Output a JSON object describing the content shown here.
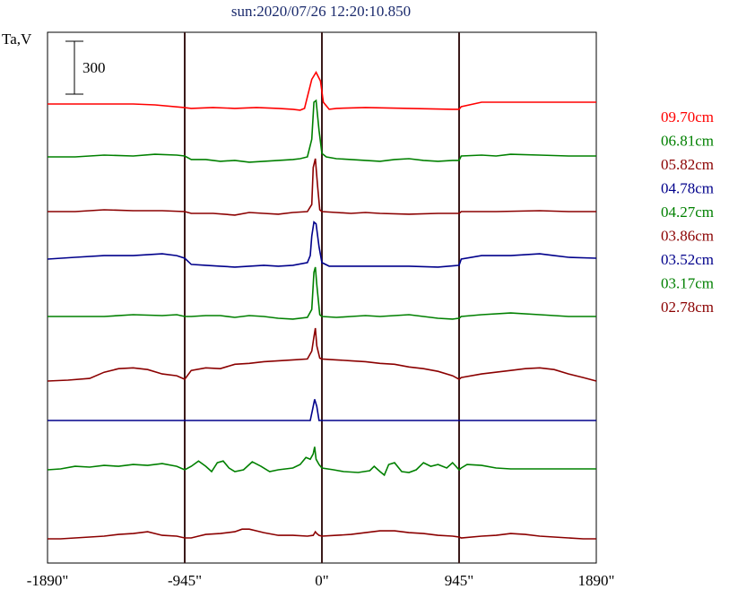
{
  "chart_data": {
    "type": "line",
    "title": "sun:2020/07/26 12:20:10.850",
    "ylabel": "Ta,V",
    "scale_bar_label": "300",
    "scale_bar_value": 300,
    "xlim": [
      -1890,
      1890
    ],
    "x_ticks": [
      -1890,
      -945,
      0,
      945,
      1890
    ],
    "x_tick_labels": [
      "-1890\"",
      "-945\"",
      "0\"",
      "945\"",
      "1890\""
    ],
    "vertical_lines": [
      -945,
      0,
      945
    ],
    "grid": false,
    "legend_position": "right",
    "series": [
      {
        "name": "09.70cm",
        "color": "#ff0000",
        "x": [
          -1890,
          -1600,
          -1300,
          -1150,
          -950,
          -900,
          -750,
          -600,
          -450,
          -300,
          -200,
          -150,
          -120,
          -100,
          -70,
          -40,
          -10,
          10,
          50,
          100,
          300,
          600,
          900,
          945,
          960,
          1100,
          1300,
          1600,
          1890
        ],
        "y": [
          0,
          0,
          0,
          -5,
          -20,
          -25,
          -20,
          -25,
          -20,
          -25,
          -30,
          -35,
          -25,
          40,
          140,
          180,
          130,
          10,
          -30,
          -25,
          -20,
          -25,
          -30,
          -30,
          -15,
          10,
          10,
          10,
          10
        ]
      },
      {
        "name": "06.81cm",
        "color": "#008000",
        "x": [
          -1890,
          -1700,
          -1500,
          -1300,
          -1150,
          -1000,
          -945,
          -900,
          -800,
          -700,
          -600,
          -500,
          -400,
          -300,
          -200,
          -150,
          -100,
          -70,
          -55,
          -40,
          -20,
          0,
          30,
          100,
          200,
          300,
          400,
          500,
          600,
          700,
          800,
          900,
          945,
          960,
          1100,
          1200,
          1300,
          1500,
          1700,
          1890
        ],
        "y": [
          0,
          0,
          10,
          5,
          15,
          10,
          5,
          -15,
          -15,
          -25,
          -20,
          -30,
          -25,
          -20,
          -15,
          -10,
          0,
          100,
          310,
          320,
          150,
          20,
          0,
          -10,
          -15,
          -20,
          -25,
          -15,
          -10,
          -20,
          -25,
          -20,
          -20,
          5,
          10,
          5,
          15,
          10,
          5,
          5
        ]
      },
      {
        "name": "05.82cm",
        "color": "#8b0000",
        "x": [
          -1890,
          -1700,
          -1500,
          -1300,
          -1100,
          -945,
          -900,
          -750,
          -600,
          -500,
          -400,
          -300,
          -200,
          -100,
          -70,
          -60,
          -45,
          -30,
          -15,
          0,
          100,
          200,
          300,
          400,
          600,
          800,
          945,
          960,
          1200,
          1500,
          1700,
          1890
        ],
        "y": [
          0,
          0,
          10,
          5,
          5,
          0,
          -10,
          -10,
          -20,
          -5,
          -10,
          -15,
          -5,
          0,
          40,
          250,
          300,
          150,
          10,
          0,
          -5,
          -10,
          -5,
          -10,
          -15,
          -10,
          -10,
          0,
          0,
          5,
          0,
          0
        ]
      },
      {
        "name": "04.78cm",
        "color": "#00008b",
        "x": [
          -1890,
          -1700,
          -1500,
          -1300,
          -1100,
          -1000,
          -945,
          -900,
          -800,
          -700,
          -600,
          -500,
          -400,
          -300,
          -200,
          -100,
          -80,
          -70,
          -55,
          -40,
          -20,
          0,
          50,
          200,
          400,
          600,
          800,
          945,
          960,
          1100,
          1300,
          1500,
          1600,
          1700,
          1890
        ],
        "y": [
          0,
          10,
          20,
          20,
          30,
          20,
          5,
          -30,
          -35,
          -40,
          -45,
          -40,
          -35,
          -40,
          -35,
          -20,
          20,
          130,
          210,
          200,
          70,
          -20,
          -40,
          -40,
          -40,
          -40,
          -45,
          -35,
          0,
          20,
          20,
          30,
          20,
          10,
          5
        ]
      },
      {
        "name": "04.27cm",
        "color": "#008000",
        "x": [
          -1890,
          -1700,
          -1500,
          -1300,
          -1100,
          -1000,
          -945,
          -900,
          -800,
          -700,
          -600,
          -500,
          -400,
          -300,
          -200,
          -100,
          -70,
          -55,
          -45,
          -35,
          -15,
          0,
          100,
          200,
          300,
          400,
          500,
          600,
          700,
          800,
          900,
          945,
          960,
          1100,
          1300,
          1500,
          1700,
          1890
        ],
        "y": [
          0,
          0,
          0,
          10,
          5,
          10,
          0,
          0,
          5,
          5,
          -5,
          5,
          0,
          -10,
          -15,
          -5,
          40,
          250,
          280,
          180,
          10,
          0,
          -5,
          0,
          5,
          0,
          5,
          10,
          0,
          -10,
          -15,
          -10,
          0,
          10,
          20,
          10,
          0,
          0
        ]
      },
      {
        "name": "03.86cm",
        "color": "#8b0000",
        "x": [
          -1890,
          -1750,
          -1600,
          -1500,
          -1400,
          -1300,
          -1200,
          -1100,
          -1000,
          -945,
          -900,
          -800,
          -700,
          -600,
          -500,
          -400,
          -300,
          -200,
          -100,
          -70,
          -55,
          -45,
          -35,
          -15,
          0,
          100,
          200,
          300,
          400,
          500,
          600,
          700,
          800,
          900,
          945,
          960,
          1100,
          1300,
          1400,
          1500,
          1600,
          1700,
          1800,
          1890
        ],
        "y": [
          0,
          5,
          15,
          50,
          70,
          75,
          65,
          40,
          30,
          10,
          60,
          75,
          70,
          95,
          100,
          110,
          115,
          120,
          125,
          170,
          250,
          300,
          200,
          130,
          125,
          120,
          115,
          110,
          100,
          95,
          80,
          70,
          55,
          30,
          10,
          20,
          40,
          60,
          70,
          75,
          65,
          40,
          20,
          0
        ]
      },
      {
        "name": "03.52cm",
        "color": "#00008b",
        "x": [
          -1890,
          -1600,
          -1300,
          -1000,
          -945,
          -900,
          -600,
          -300,
          -100,
          -80,
          -65,
          -50,
          -35,
          -20,
          0,
          300,
          600,
          900,
          945,
          960,
          1300,
          1600,
          1890
        ],
        "y": [
          0,
          0,
          0,
          0,
          0,
          0,
          0,
          0,
          0,
          0,
          60,
          120,
          80,
          0,
          0,
          0,
          0,
          0,
          0,
          0,
          0,
          0,
          0
        ]
      },
      {
        "name": "03.17cm",
        "color": "#008000",
        "x": [
          -1890,
          -1800,
          -1700,
          -1600,
          -1500,
          -1400,
          -1300,
          -1200,
          -1100,
          -1000,
          -945,
          -900,
          -850,
          -800,
          -760,
          -720,
          -680,
          -640,
          -600,
          -540,
          -480,
          -420,
          -360,
          -300,
          -250,
          -200,
          -150,
          -110,
          -80,
          -60,
          -50,
          -40,
          -20,
          0,
          80,
          150,
          250,
          330,
          360,
          400,
          430,
          460,
          500,
          550,
          600,
          650,
          700,
          750,
          800,
          860,
          900,
          945,
          960,
          1000,
          1100,
          1200,
          1300,
          1500,
          1700,
          1890
        ],
        "y": [
          0,
          5,
          20,
          15,
          25,
          20,
          30,
          25,
          35,
          20,
          0,
          20,
          50,
          20,
          -10,
          40,
          50,
          10,
          -10,
          0,
          45,
          20,
          -10,
          0,
          5,
          10,
          30,
          70,
          60,
          90,
          130,
          60,
          30,
          10,
          0,
          -10,
          -15,
          -5,
          20,
          -10,
          -30,
          30,
          40,
          -10,
          -15,
          0,
          40,
          20,
          30,
          10,
          40,
          0,
          10,
          30,
          25,
          10,
          5,
          5,
          5,
          5
        ]
      },
      {
        "name": "02.78cm",
        "color": "#8b0000",
        "x": [
          -1890,
          -1800,
          -1700,
          -1600,
          -1500,
          -1400,
          -1300,
          -1200,
          -1100,
          -1000,
          -945,
          -900,
          -850,
          -800,
          -700,
          -600,
          -550,
          -500,
          -450,
          -400,
          -300,
          -200,
          -100,
          -60,
          -45,
          -35,
          -20,
          0,
          100,
          200,
          300,
          400,
          500,
          600,
          700,
          800,
          900,
          945,
          960,
          1100,
          1200,
          1300,
          1400,
          1500,
          1600,
          1700,
          1800,
          1890
        ],
        "y": [
          0,
          0,
          5,
          10,
          15,
          25,
          30,
          40,
          20,
          15,
          5,
          5,
          15,
          25,
          30,
          40,
          55,
          55,
          45,
          35,
          20,
          20,
          15,
          20,
          40,
          30,
          20,
          15,
          20,
          25,
          35,
          45,
          45,
          35,
          30,
          20,
          15,
          10,
          5,
          15,
          20,
          30,
          25,
          15,
          10,
          5,
          0,
          0
        ]
      }
    ],
    "legend_entries": [
      "09.70cm",
      "06.81cm",
      "05.82cm",
      "04.78cm",
      "04.27cm",
      "03.86cm",
      "03.52cm",
      "03.17cm",
      "02.78cm"
    ]
  }
}
